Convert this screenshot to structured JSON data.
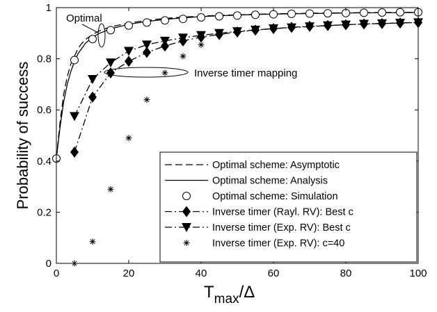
{
  "chart_data": {
    "type": "line",
    "xlabel_main": "T",
    "xlabel_sub": "max",
    "xlabel_tail": "/Δ",
    "ylabel": "Probability of success",
    "xlim": [
      0,
      100
    ],
    "ylim": [
      0,
      1
    ],
    "x_ticks": [
      "0",
      "20",
      "40",
      "60",
      "80",
      "100"
    ],
    "y_ticks": [
      "0",
      "0.2",
      "0.4",
      "0.6",
      "0.8",
      "1"
    ],
    "grid": false,
    "legend_position": "bottom-right",
    "annotations": [
      "Optimal",
      "Inverse timer mapping"
    ],
    "series": [
      {
        "name": "Optimal scheme: Asymptotic",
        "style": "dashed",
        "marker": "none",
        "x": [
          0,
          1,
          2,
          3,
          4,
          5,
          6,
          7,
          8,
          10,
          12,
          15,
          20,
          25,
          30,
          35,
          40,
          45,
          50,
          60,
          70,
          80,
          90,
          100
        ],
        "y": [
          0.41,
          0.55,
          0.66,
          0.73,
          0.78,
          0.81,
          0.84,
          0.86,
          0.875,
          0.895,
          0.91,
          0.925,
          0.94,
          0.95,
          0.958,
          0.963,
          0.967,
          0.97,
          0.972,
          0.976,
          0.978,
          0.98,
          0.981,
          0.982
        ]
      },
      {
        "name": "Optimal scheme: Analysis",
        "style": "solid",
        "marker": "none",
        "x": [
          0,
          1,
          2,
          3,
          4,
          5,
          6,
          7,
          8,
          10,
          12,
          15,
          20,
          25,
          30,
          35,
          40,
          45,
          50,
          60,
          70,
          80,
          90,
          100
        ],
        "y": [
          0.41,
          0.53,
          0.63,
          0.7,
          0.75,
          0.79,
          0.82,
          0.84,
          0.86,
          0.885,
          0.9,
          0.917,
          0.935,
          0.946,
          0.954,
          0.96,
          0.965,
          0.968,
          0.971,
          0.975,
          0.977,
          0.979,
          0.98,
          0.981
        ]
      },
      {
        "name": "Optimal scheme: Simulation",
        "style": "none",
        "marker": "circle",
        "x": [
          0,
          5,
          10,
          15,
          20,
          25,
          30,
          35,
          40,
          45,
          50,
          55,
          60,
          65,
          70,
          75,
          80,
          85,
          90,
          95,
          100
        ],
        "y": [
          0.41,
          0.795,
          0.877,
          0.912,
          0.93,
          0.942,
          0.95,
          0.956,
          0.962,
          0.966,
          0.969,
          0.972,
          0.974,
          0.976,
          0.977,
          0.978,
          0.979,
          0.98,
          0.981,
          0.982,
          0.982
        ]
      },
      {
        "name": "Inverse timer (Rayl. RV): Best c",
        "style": "dashdot",
        "marker": "diamond",
        "x": [
          5,
          10,
          15,
          20,
          25,
          30,
          35,
          40,
          45,
          50,
          55,
          60,
          65,
          70,
          75,
          80,
          85,
          90,
          95,
          100
        ],
        "y": [
          0.435,
          0.65,
          0.745,
          0.79,
          0.825,
          0.85,
          0.87,
          0.885,
          0.895,
          0.905,
          0.912,
          0.918,
          0.923,
          0.927,
          0.93,
          0.933,
          0.936,
          0.938,
          0.94,
          0.942
        ]
      },
      {
        "name": "Inverse timer (Exp. RV): Best c",
        "style": "dashdot",
        "marker": "triangle-down",
        "x": [
          5,
          10,
          15,
          20,
          25,
          30,
          35,
          40,
          45,
          50,
          55,
          60,
          65,
          70,
          75,
          80,
          85,
          90,
          95,
          100
        ],
        "y": [
          0.575,
          0.72,
          0.785,
          0.83,
          0.855,
          0.87,
          0.882,
          0.892,
          0.9,
          0.907,
          0.913,
          0.918,
          0.922,
          0.926,
          0.93,
          0.933,
          0.936,
          0.938,
          0.94,
          0.942
        ]
      },
      {
        "name": "Inverse timer (Exp. RV): c=40",
        "style": "none",
        "marker": "asterisk",
        "x": [
          5,
          10,
          15,
          20,
          25,
          30,
          35,
          40
        ],
        "y": [
          0.0,
          0.085,
          0.29,
          0.49,
          0.64,
          0.745,
          0.81,
          0.855
        ]
      }
    ]
  }
}
